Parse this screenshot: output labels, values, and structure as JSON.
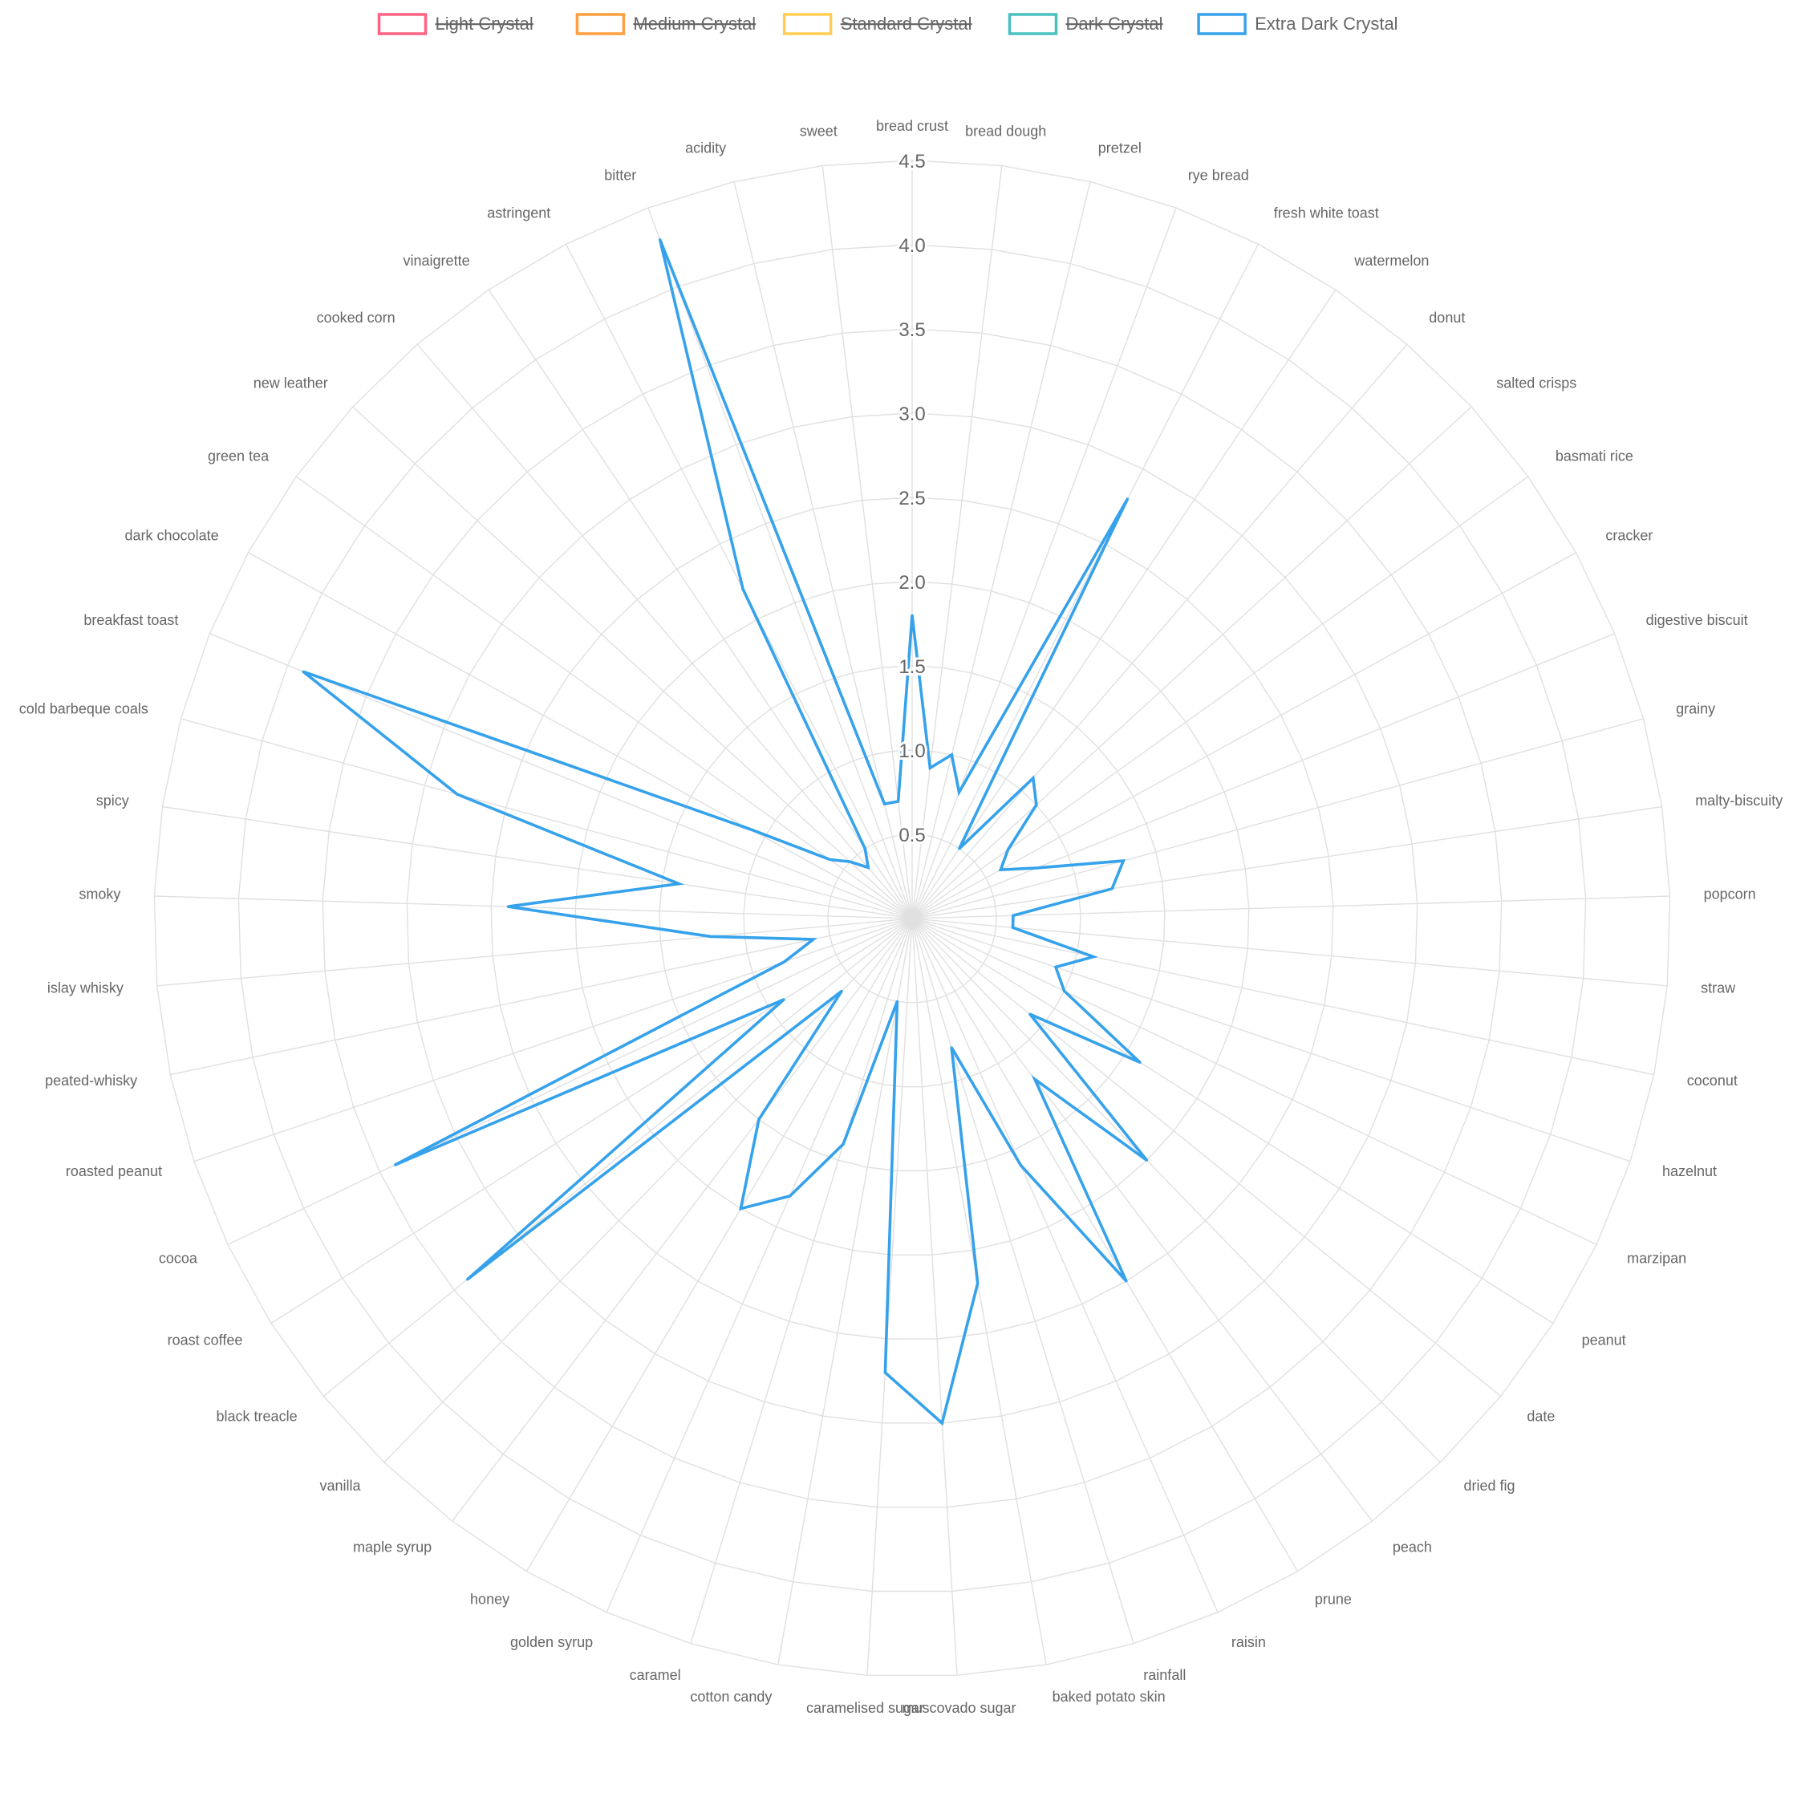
{
  "chart_data": {
    "type": "radar",
    "title": "",
    "axes": [
      "bread crust",
      "bread dough",
      "pretzel",
      "rye bread",
      "fresh white toast",
      "watermelon",
      "donut",
      "salted crisps",
      "basmati rice",
      "cracker",
      "digestive biscuit",
      "grainy",
      "malty-biscuity",
      "popcorn",
      "straw",
      "coconut",
      "hazelnut",
      "marzipan",
      "peanut",
      "date",
      "dried fig",
      "peach",
      "prune",
      "raisin",
      "rainfall",
      "baked potato skin",
      "muscovado sugar",
      "caramelised sugar",
      "cotton candy",
      "caramel",
      "golden syrup",
      "honey",
      "maple syrup",
      "vanilla",
      "black treacle",
      "roast coffee",
      "cocoa",
      "roasted peanut",
      "peated-whisky",
      "islay whisky",
      "smoky",
      "spicy",
      "cold barbeque coals",
      "breakfast toast",
      "dark chocolate",
      "green tea",
      "new leather",
      "cooked corn",
      "vinaigrette",
      "astringent",
      "bitter",
      "acidity",
      "sweet"
    ],
    "r_range": [
      0,
      4.5
    ],
    "r_ticks": [
      "0.5",
      "1.0",
      "1.5",
      "2.0",
      "2.5",
      "3.0",
      "3.5",
      "4.0",
      "4.5"
    ],
    "legend_position": "top-center",
    "series": [
      {
        "name": "Light Crystal",
        "color": "#ff6384",
        "hidden": true,
        "values": []
      },
      {
        "name": "Medium Crystal",
        "color": "#ff9f40",
        "hidden": true,
        "values": []
      },
      {
        "name": "Standard Crystal",
        "color": "#ffcd56",
        "hidden": true,
        "values": []
      },
      {
        "name": "Dark Crystal",
        "color": "#4bc0c0",
        "hidden": true,
        "values": []
      },
      {
        "name": "Extra Dark Crystal",
        "color": "#36a2eb",
        "hidden": false,
        "values": [
          1.8,
          0.9,
          1.0,
          0.8,
          2.8,
          0.5,
          1.1,
          1.0,
          0.7,
          0.6,
          0.8,
          1.3,
          1.2,
          0.6,
          0.6,
          1.1,
          0.9,
          1.0,
          1.6,
          0.9,
          2.0,
          1.2,
          2.5,
          1.6,
          0.8,
          2.2,
          3.0,
          2.7,
          0.5,
          1.4,
          1.8,
          2.0,
          1.5,
          0.6,
          3.4,
          0.9,
          3.4,
          0.8,
          0.6,
          1.2,
          2.4,
          1.4,
          2.8,
          3.9,
          1.1,
          0.6,
          0.5,
          0.4,
          0.5,
          2.2,
          4.3,
          0.7,
          0.7
        ]
      }
    ]
  }
}
